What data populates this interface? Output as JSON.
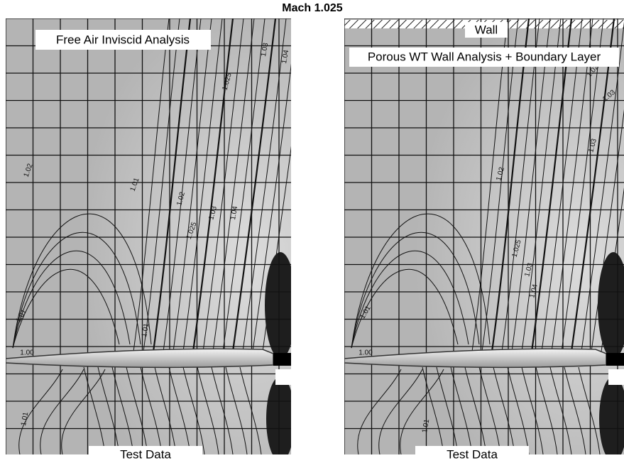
{
  "title": "Mach 1.025",
  "panels": [
    {
      "label": "Free Air Inviscid Analysis",
      "footer": "Test Data",
      "contour_labels": [
        "1.025",
        "1.03",
        "1.04",
        "1.02",
        "1.01",
        "1.02",
        "1.025",
        "1.03",
        "1.04",
        "1.01",
        "1.00",
        "1.01",
        "1.01"
      ]
    },
    {
      "wall": "Wall",
      "label": "Porous WT Wall Analysis + Boundary Layer",
      "footer": "Test Data",
      "contour_labels": [
        "1.02",
        "1.03",
        "1.03",
        "1.02",
        "1.025",
        "1.03",
        "1.04",
        "1.01",
        "1.00",
        "1.01"
      ]
    }
  ]
}
